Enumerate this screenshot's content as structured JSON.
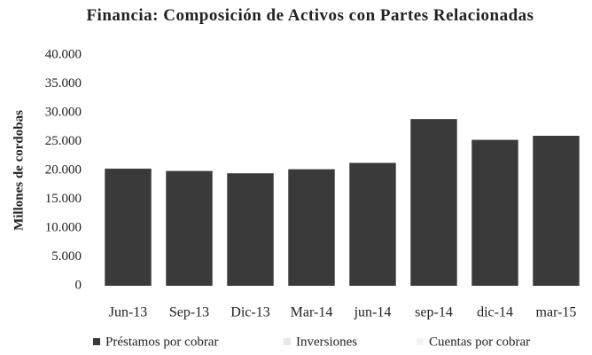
{
  "chart_data": {
    "type": "stacked_bar",
    "title": "Financia: Composición de Activos con Partes Relacionadas",
    "y_label": "Millones de cordobas",
    "categories": [
      "Jun-13",
      "Sep-13",
      "Dic-13",
      "Mar-14",
      "jun-14",
      "sep-14",
      "dic-14",
      "mar-15"
    ],
    "series": [
      {
        "name": "Préstamos por cobrar",
        "color": "#3a3a3a",
        "values": [
          20300,
          19900,
          19500,
          20200,
          21300,
          28900,
          25300,
          26000
        ]
      },
      {
        "name": "Inversiones",
        "color": "#e8e8e8",
        "values": [
          0,
          0,
          0,
          0,
          0,
          0,
          0,
          0
        ]
      },
      {
        "name": "Cuentas por cobrar",
        "color": "#f4f4f4",
        "values": [
          0,
          0,
          0,
          0,
          0,
          0,
          0,
          0
        ]
      }
    ],
    "ylim": [
      0,
      40000
    ],
    "yticks": [
      0,
      {
        "value": 5000,
        "label": "5.000"
      },
      {
        "value": 10000,
        "label": "10.000"
      },
      {
        "value": 15000,
        "label": "15.000"
      },
      {
        "value": 20000,
        "label": "20.000"
      },
      {
        "value": 25000,
        "label": "25.000"
      },
      {
        "value": 30000,
        "label": "30.000"
      },
      {
        "value": 35000,
        "label": "35.000"
      },
      {
        "value": 40000,
        "label": "40.000"
      }
    ],
    "grid": false
  }
}
